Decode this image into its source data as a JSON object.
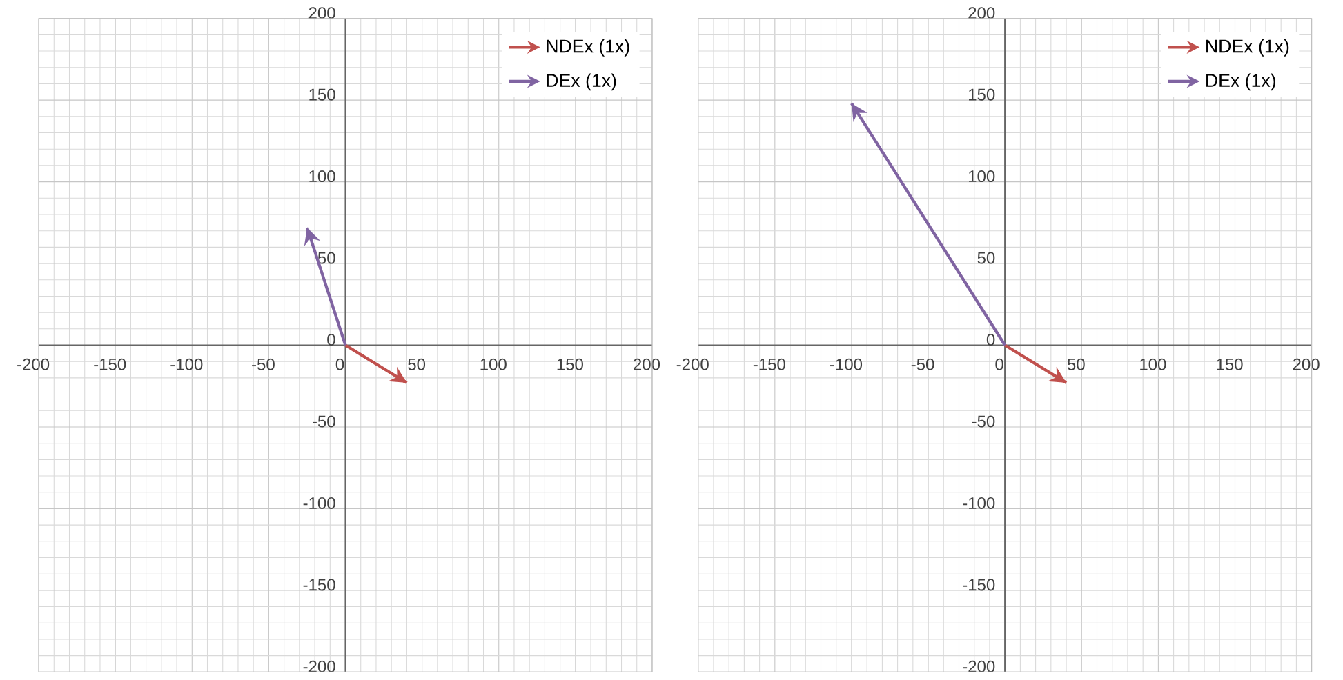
{
  "chart_data": [
    {
      "type": "line",
      "xlim": [
        -200,
        200
      ],
      "ylim": [
        -200,
        200
      ],
      "xticks": [
        -200,
        -150,
        -100,
        -50,
        0,
        50,
        100,
        150,
        200
      ],
      "yticks": [
        -200,
        -150,
        -100,
        -50,
        0,
        50,
        100,
        150,
        200
      ],
      "grid": true,
      "legend": "top right",
      "marker": "none",
      "line_style": "solid",
      "series": [
        {
          "name": "NDEx (1x)",
          "color": "#c0504d",
          "x": [
            0,
            40
          ],
          "values": [
            0,
            -23
          ]
        },
        {
          "name": "DEx (1x)",
          "color": "#8064a2",
          "x": [
            0,
            -25
          ],
          "values": [
            0,
            72
          ]
        }
      ]
    },
    {
      "type": "line",
      "xlim": [
        -200,
        200
      ],
      "ylim": [
        -200,
        200
      ],
      "xticks": [
        -200,
        -150,
        -100,
        -50,
        0,
        50,
        100,
        150,
        200
      ],
      "yticks": [
        -200,
        -150,
        -100,
        -50,
        0,
        50,
        100,
        150,
        200
      ],
      "grid": true,
      "legend": "top right",
      "marker": "none",
      "line_style": "solid",
      "series": [
        {
          "name": "NDEx (1x)",
          "color": "#c0504d",
          "x": [
            0,
            40
          ],
          "values": [
            0,
            -23
          ]
        },
        {
          "name": "DEx (1x)",
          "color": "#8064a2",
          "x": [
            0,
            -100
          ],
          "values": [
            0,
            148
          ]
        }
      ]
    }
  ]
}
